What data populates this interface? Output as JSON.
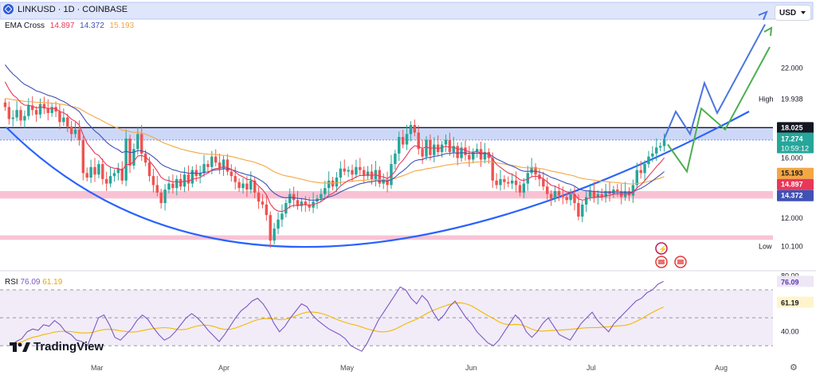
{
  "header": {
    "symbol": "LINKUSD · 1D · COINBASE",
    "currency": "USD"
  },
  "ema": {
    "label": "EMA Cross",
    "v1": "14.897",
    "v2": "14.372",
    "v3": "15.193"
  },
  "rsi": {
    "label": "RSI",
    "v1": "76.09",
    "v2": "61.19"
  },
  "brand": "TradingView",
  "colors": {
    "up": "#26a69a",
    "down": "#ef5350",
    "ema_fast": "#e8385a",
    "ema_mid": "#3f51b5",
    "ema_slow": "#f4a742",
    "rsi": "#7e57c2",
    "rsi_ma": "#f5b800",
    "accent_blue": "#2962ff",
    "projection_blue": "#4a74e0",
    "projection_green": "#4caf50",
    "zone_red": "#f48fb1",
    "zone_blue": "#90a8f0"
  },
  "chart_data": {
    "type": "candlestick",
    "title": "LINKUSD · 1D · COINBASE",
    "x_ticks": [
      "Mar",
      "Apr",
      "May",
      "Jun",
      "Jul",
      "Aug"
    ],
    "price_ticks": [
      "22.000",
      "16.000",
      "12.000"
    ],
    "price_axis_labels": {
      "high_label": "High",
      "high": "19.938",
      "low_label": "Low",
      "low": "10.100",
      "resistance": "18.025",
      "last": "17.274",
      "countdown": "10:59:12"
    },
    "price_range": [
      8.6,
      26.0
    ],
    "rsi_ticks": [
      "80.00",
      "40.00"
    ],
    "rsi_range": [
      25,
      82
    ],
    "rsi_levels": [
      70,
      50,
      30
    ],
    "ema_fast_last": 14.897,
    "ema_mid_last": 14.372,
    "ema_slow_last": 15.193,
    "resistance": 18.025,
    "support_zones": [
      [
        13.3,
        13.8
      ],
      [
        10.55,
        10.85
      ]
    ],
    "resistance_zone": [
      17.2,
      18.025
    ],
    "candles_close": [
      19.4,
      18.6,
      18.7,
      19.2,
      18.5,
      18.8,
      19.5,
      19.2,
      18.9,
      19.6,
      19.3,
      19.0,
      19.4,
      19.1,
      18.4,
      18.7,
      18.1,
      17.6,
      17.9,
      17.2,
      15.0,
      14.7,
      15.4,
      14.9,
      15.6,
      14.6,
      14.3,
      14.8,
      15.0,
      15.3,
      14.5,
      17.3,
      15.5,
      16.6,
      17.6,
      16.3,
      15.7,
      14.8,
      14.2,
      13.7,
      13.0,
      13.9,
      14.3,
      14.0,
      14.6,
      14.1,
      14.9,
      14.3,
      15.2,
      14.8,
      15.0,
      15.6,
      15.4,
      16.1,
      15.7,
      15.3,
      15.9,
      15.1,
      14.8,
      14.4,
      14.0,
      14.3,
      13.9,
      14.5,
      13.7,
      13.1,
      12.9,
      12.2,
      10.5,
      11.3,
      11.9,
      12.3,
      13.0,
      13.6,
      13.2,
      12.8,
      13.1,
      12.9,
      12.7,
      13.1,
      13.3,
      13.6,
      14.0,
      14.5,
      14.1,
      14.7,
      15.3,
      15.1,
      15.2,
      14.9,
      15.4,
      15.2,
      14.8,
      15.1,
      14.6,
      15.2,
      14.3,
      14.6,
      14.2,
      15.6,
      16.3,
      17.4,
      16.9,
      17.6,
      18.2,
      17.7,
      16.6,
      16.1,
      17.2,
      16.2,
      16.9,
      16.4,
      16.9,
      17.2,
      16.4,
      16.8,
      16.0,
      16.7,
      16.2,
      15.9,
      16.4,
      16.6,
      15.9,
      16.4,
      16.0,
      14.5,
      14.2,
      14.6,
      14.4,
      14.3,
      14.5,
      14.2,
      13.7,
      14.3,
      15.0,
      15.4,
      14.9,
      14.6,
      14.1,
      13.6,
      13.3,
      13.8,
      13.5,
      13.4,
      13.2,
      13.6,
      13.0,
      12.1,
      12.9,
      13.4,
      13.8,
      13.4,
      13.6,
      13.4,
      13.8,
      13.6,
      13.9,
      13.8,
      13.4,
      13.8,
      13.5,
      14.2,
      15.2,
      15.0,
      15.6,
      16.1,
      16.3,
      16.7,
      16.8,
      17.27
    ],
    "rsi_values": [
      30,
      33,
      35,
      40,
      42,
      41,
      45,
      44,
      48,
      45,
      40,
      38,
      34,
      33,
      30,
      40,
      50,
      52,
      45,
      36,
      34,
      38,
      42,
      48,
      52,
      49,
      43,
      38,
      34,
      36,
      40,
      45,
      50,
      53,
      50,
      46,
      41,
      37,
      33,
      38,
      44,
      50,
      55,
      58,
      62,
      64,
      60,
      54,
      46,
      40,
      44,
      50,
      55,
      60,
      58,
      52,
      48,
      45,
      42,
      40,
      38,
      35,
      30,
      28,
      26,
      32,
      40,
      48,
      54,
      60,
      66,
      72,
      70,
      64,
      60,
      66,
      62,
      54,
      48,
      52,
      58,
      62,
      56,
      50,
      46,
      40,
      36,
      32,
      30,
      34,
      40,
      46,
      52,
      48,
      40,
      36,
      40,
      46,
      50,
      44,
      38,
      36,
      34,
      40,
      46,
      50,
      54,
      48,
      44,
      40,
      46,
      50,
      54,
      58,
      62,
      64,
      68,
      70,
      74,
      76.09
    ]
  }
}
